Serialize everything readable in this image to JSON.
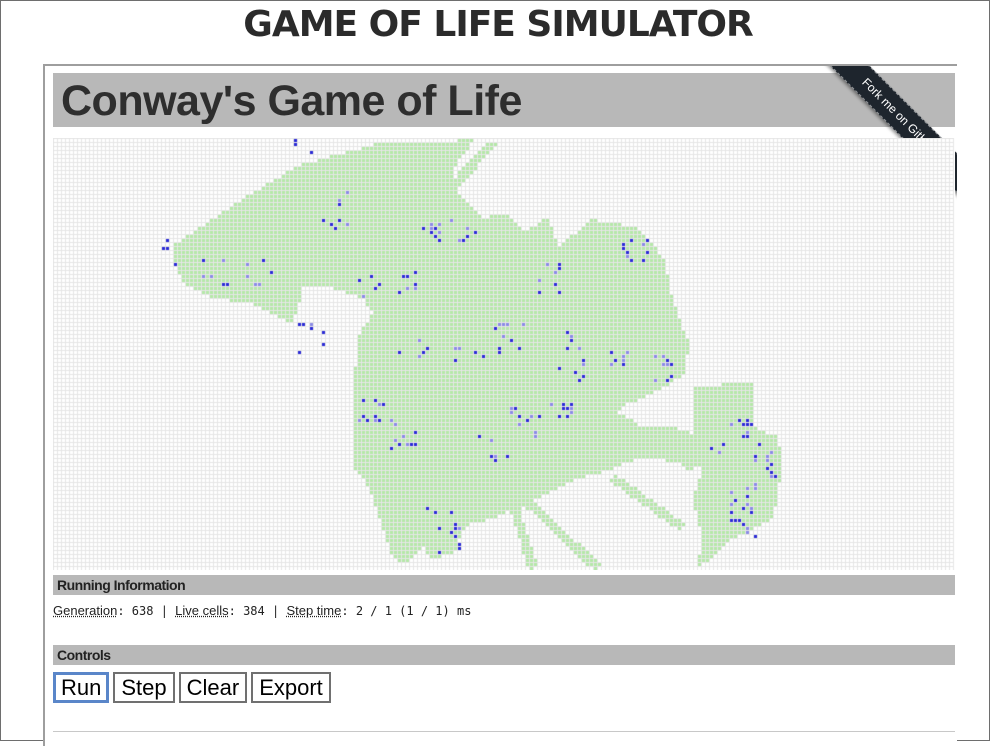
{
  "page": {
    "title": "GAME OF LIFE SIMULATOR"
  },
  "app": {
    "title": "Conway's Game of Life",
    "ribbon": "Fork me on GitHub"
  },
  "colors": {
    "grid_line": "#e6e6e6",
    "trail_cell": "#b5e8a8",
    "live_cell": "#2a2ad6",
    "dying_cell": "#8a8ae6",
    "section_bg": "#b8b8b8"
  },
  "running_info": {
    "heading": "Running Information",
    "generation_label": "Generation",
    "generation_value": "638",
    "live_cells_label": "Live cells",
    "live_cells_value": "384",
    "step_time_label": "Step time",
    "step_time_value": "2 / 1 (1 / 1) ms",
    "separator": " | "
  },
  "controls": {
    "heading": "Controls",
    "run": "Run",
    "step": "Step",
    "clear": "Clear",
    "export": "Export"
  }
}
